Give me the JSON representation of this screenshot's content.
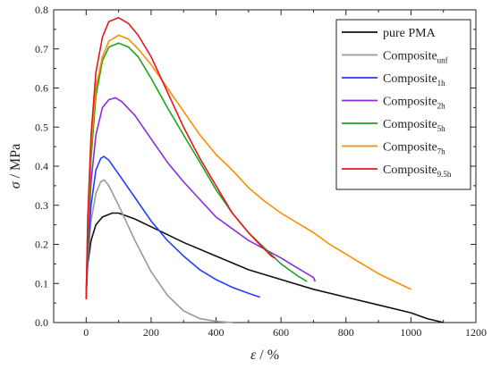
{
  "chart_data": {
    "type": "line",
    "xlabel": {
      "symbol": "ε",
      "unit": " / %"
    },
    "ylabel": {
      "symbol": "σ",
      "unit": " / MPa"
    },
    "xlim": [
      -100,
      1200
    ],
    "ylim": [
      0,
      0.8
    ],
    "xticks": [
      0,
      200,
      400,
      600,
      800,
      1000,
      1200
    ],
    "yticks": [
      0.0,
      0.1,
      0.2,
      0.3,
      0.4,
      0.5,
      0.6,
      0.7,
      0.8
    ],
    "xtick_labels": [
      "0",
      "200",
      "400",
      "600",
      "800",
      "1000",
      "1200"
    ],
    "ytick_labels": [
      "0.0",
      "0.1",
      "0.2",
      "0.3",
      "0.4",
      "0.5",
      "0.6",
      "0.7",
      "0.8"
    ],
    "grid": false,
    "legend_position": "top-right",
    "series": [
      {
        "name": "pure PMA",
        "sub": "",
        "color": "#111111",
        "points": [
          [
            0,
            0.07
          ],
          [
            5,
            0.15
          ],
          [
            15,
            0.21
          ],
          [
            30,
            0.25
          ],
          [
            50,
            0.27
          ],
          [
            80,
            0.28
          ],
          [
            100,
            0.28
          ],
          [
            150,
            0.265
          ],
          [
            200,
            0.245
          ],
          [
            300,
            0.205
          ],
          [
            400,
            0.17
          ],
          [
            500,
            0.135
          ],
          [
            600,
            0.11
          ],
          [
            700,
            0.085
          ],
          [
            800,
            0.065
          ],
          [
            900,
            0.045
          ],
          [
            1000,
            0.025
          ],
          [
            1050,
            0.01
          ],
          [
            1100,
            0.0
          ]
        ]
      },
      {
        "name": "Composite",
        "sub": "unf",
        "color": "#999999",
        "points": [
          [
            0,
            0.06
          ],
          [
            5,
            0.16
          ],
          [
            15,
            0.26
          ],
          [
            30,
            0.33
          ],
          [
            45,
            0.36
          ],
          [
            55,
            0.365
          ],
          [
            70,
            0.35
          ],
          [
            100,
            0.3
          ],
          [
            150,
            0.21
          ],
          [
            200,
            0.13
          ],
          [
            250,
            0.07
          ],
          [
            300,
            0.03
          ],
          [
            350,
            0.01
          ],
          [
            400,
            0.003
          ],
          [
            450,
            0.0
          ]
        ]
      },
      {
        "name": "Composite",
        "sub": "1h",
        "color": "#1f3fff",
        "points": [
          [
            0,
            0.06
          ],
          [
            5,
            0.18
          ],
          [
            15,
            0.3
          ],
          [
            30,
            0.39
          ],
          [
            45,
            0.42
          ],
          [
            55,
            0.425
          ],
          [
            70,
            0.415
          ],
          [
            100,
            0.38
          ],
          [
            150,
            0.32
          ],
          [
            200,
            0.26
          ],
          [
            250,
            0.21
          ],
          [
            300,
            0.17
          ],
          [
            350,
            0.135
          ],
          [
            400,
            0.11
          ],
          [
            450,
            0.09
          ],
          [
            500,
            0.075
          ],
          [
            535,
            0.065
          ]
        ]
      },
      {
        "name": "Composite",
        "sub": "2h",
        "color": "#8a2be2",
        "points": [
          [
            0,
            0.07
          ],
          [
            5,
            0.2
          ],
          [
            15,
            0.36
          ],
          [
            30,
            0.48
          ],
          [
            50,
            0.55
          ],
          [
            70,
            0.57
          ],
          [
            90,
            0.575
          ],
          [
            110,
            0.565
          ],
          [
            150,
            0.53
          ],
          [
            200,
            0.47
          ],
          [
            250,
            0.41
          ],
          [
            300,
            0.36
          ],
          [
            400,
            0.27
          ],
          [
            500,
            0.21
          ],
          [
            600,
            0.165
          ],
          [
            650,
            0.14
          ],
          [
            700,
            0.115
          ],
          [
            705,
            0.105
          ]
        ]
      },
      {
        "name": "Composite",
        "sub": "5h",
        "color": "#19a619",
        "points": [
          [
            0,
            0.07
          ],
          [
            5,
            0.22
          ],
          [
            15,
            0.42
          ],
          [
            30,
            0.58
          ],
          [
            50,
            0.67
          ],
          [
            70,
            0.705
          ],
          [
            100,
            0.715
          ],
          [
            130,
            0.705
          ],
          [
            160,
            0.68
          ],
          [
            200,
            0.625
          ],
          [
            250,
            0.55
          ],
          [
            300,
            0.48
          ],
          [
            350,
            0.41
          ],
          [
            400,
            0.34
          ],
          [
            450,
            0.28
          ],
          [
            500,
            0.23
          ],
          [
            550,
            0.19
          ],
          [
            600,
            0.15
          ],
          [
            650,
            0.12
          ],
          [
            680,
            0.105
          ]
        ]
      },
      {
        "name": "Composite",
        "sub": "7h",
        "color": "#ff8c00",
        "points": [
          [
            0,
            0.07
          ],
          [
            5,
            0.25
          ],
          [
            15,
            0.45
          ],
          [
            30,
            0.6
          ],
          [
            50,
            0.68
          ],
          [
            70,
            0.72
          ],
          [
            100,
            0.735
          ],
          [
            130,
            0.725
          ],
          [
            160,
            0.7
          ],
          [
            200,
            0.66
          ],
          [
            250,
            0.6
          ],
          [
            300,
            0.54
          ],
          [
            350,
            0.48
          ],
          [
            400,
            0.43
          ],
          [
            450,
            0.39
          ],
          [
            500,
            0.345
          ],
          [
            550,
            0.31
          ],
          [
            600,
            0.28
          ],
          [
            650,
            0.255
          ],
          [
            700,
            0.23
          ],
          [
            750,
            0.2
          ],
          [
            800,
            0.175
          ],
          [
            850,
            0.15
          ],
          [
            900,
            0.125
          ],
          [
            950,
            0.105
          ],
          [
            1000,
            0.085
          ]
        ]
      },
      {
        "name": "Composite",
        "sub": "9.5h",
        "color": "#e8161b",
        "points": [
          [
            0,
            0.06
          ],
          [
            5,
            0.27
          ],
          [
            15,
            0.48
          ],
          [
            30,
            0.64
          ],
          [
            50,
            0.73
          ],
          [
            70,
            0.77
          ],
          [
            100,
            0.78
          ],
          [
            130,
            0.765
          ],
          [
            160,
            0.735
          ],
          [
            200,
            0.68
          ],
          [
            250,
            0.59
          ],
          [
            300,
            0.5
          ],
          [
            350,
            0.42
          ],
          [
            400,
            0.35
          ],
          [
            450,
            0.28
          ],
          [
            500,
            0.23
          ],
          [
            540,
            0.195
          ],
          [
            570,
            0.17
          ],
          [
            580,
            0.165
          ]
        ]
      }
    ]
  }
}
